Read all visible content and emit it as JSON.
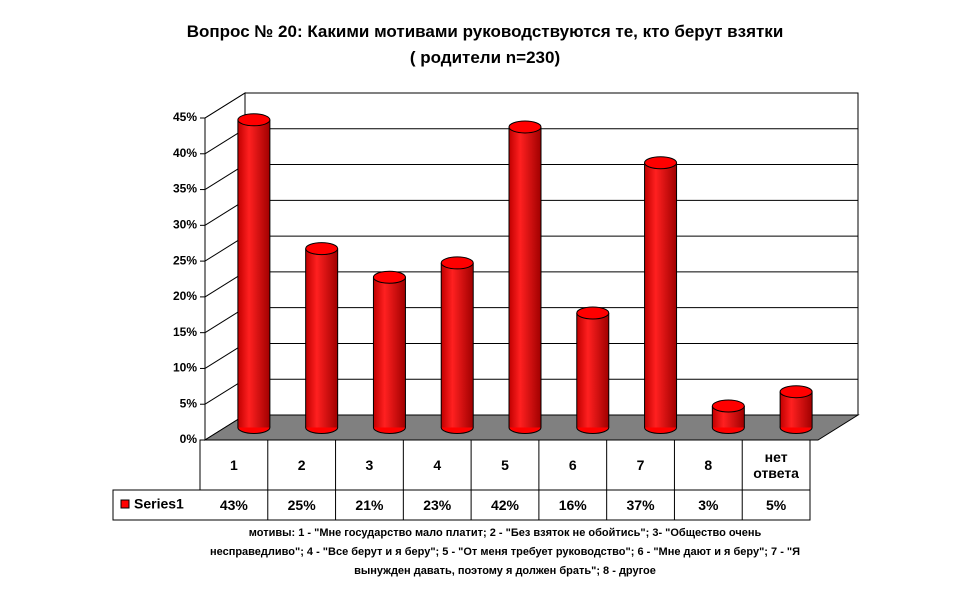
{
  "chart_data": {
    "type": "bar3d",
    "title": "Вопрос № 20: Какими мотивами руководствуются те, кто берут взятки",
    "subtitle": "( родители n=230)",
    "categories": [
      "1",
      "2",
      "3",
      "4",
      "5",
      "6",
      "7",
      "8",
      "нет ответа"
    ],
    "series": [
      {
        "name": "Series1",
        "color": "#ff0000",
        "values": [
          43,
          25,
          21,
          23,
          42,
          16,
          37,
          3,
          5
        ],
        "value_labels": [
          "43%",
          "25%",
          "21%",
          "23%",
          "42%",
          "16%",
          "37%",
          "3%",
          "5%"
        ]
      }
    ],
    "ylim": [
      0,
      45
    ],
    "yticks": [
      {
        "value": 0,
        "label": "0%"
      },
      {
        "value": 5,
        "label": "5%"
      },
      {
        "value": 10,
        "label": "10%"
      },
      {
        "value": 15,
        "label": "15%"
      },
      {
        "value": 20,
        "label": "20%"
      },
      {
        "value": 25,
        "label": "25%"
      },
      {
        "value": 30,
        "label": "30%"
      },
      {
        "value": 35,
        "label": "35%"
      },
      {
        "value": 40,
        "label": "40%"
      },
      {
        "value": 45,
        "label": "45%"
      }
    ],
    "grid": true,
    "note": "мотивы: 1 - \"Мне государство мало платит; 2 - \"Без взяток не обойтись\"; 3- \"Общество очень несправедливо\"; 4 - \"Все берут и я беру\"; 5 - \"От меня требует руководство\"; 6 - \"Мне дают и я беру\"; 7 - \"Я вынужден давать, поэтому я должен брать\"; 8 - другое"
  }
}
